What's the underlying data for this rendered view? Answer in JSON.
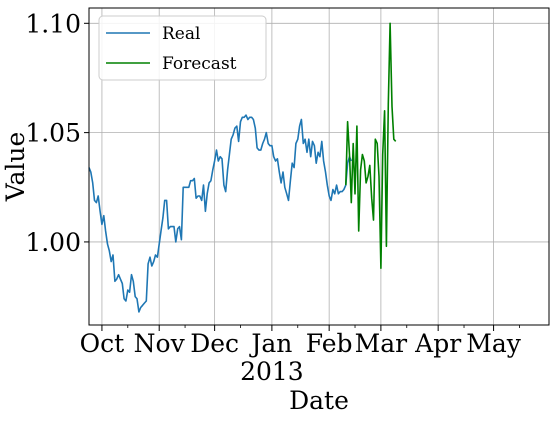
{
  "chart_data": {
    "type": "line",
    "xlabel": "Date",
    "ylabel": "Value",
    "x_tick_labels": [
      "Oct",
      "Nov",
      "Dec",
      "Jan",
      "Feb",
      "Mar",
      "Apr",
      "May"
    ],
    "x_tick_dates": [
      "2012-10-01",
      "2012-11-01",
      "2012-12-01",
      "2013-01-01",
      "2013-02-01",
      "2013-03-01",
      "2013-04-01",
      "2013-05-01"
    ],
    "x_year_label": "2013",
    "xlim": [
      "2012-09-24",
      "2013-05-31"
    ],
    "y_ticks": [
      1.0,
      1.05,
      1.1
    ],
    "y_tick_labels": [
      "1.00",
      "1.05",
      "1.10"
    ],
    "ylim": [
      0.962,
      1.107
    ],
    "grid": true,
    "legend_position": "upper-left",
    "series": [
      {
        "name": "Real",
        "color": "#1f77b4",
        "points": [
          [
            "2012-09-24",
            1.034
          ],
          [
            "2012-09-25",
            1.032
          ],
          [
            "2012-09-26",
            1.027
          ],
          [
            "2012-09-27",
            1.019
          ],
          [
            "2012-09-28",
            1.018
          ],
          [
            "2012-09-29",
            1.021
          ],
          [
            "2012-09-30",
            1.014
          ],
          [
            "2012-10-01",
            1.008
          ],
          [
            "2012-10-02",
            1.012
          ],
          [
            "2012-10-03",
            1.005
          ],
          [
            "2012-10-04",
            0.999
          ],
          [
            "2012-10-05",
            0.996
          ],
          [
            "2012-10-06",
            0.991
          ],
          [
            "2012-10-07",
            0.994
          ],
          [
            "2012-10-08",
            0.982
          ],
          [
            "2012-10-09",
            0.983
          ],
          [
            "2012-10-10",
            0.985
          ],
          [
            "2012-10-11",
            0.983
          ],
          [
            "2012-10-12",
            0.981
          ],
          [
            "2012-10-13",
            0.974
          ],
          [
            "2012-10-14",
            0.973
          ],
          [
            "2012-10-15",
            0.978
          ],
          [
            "2012-10-16",
            0.977
          ],
          [
            "2012-10-17",
            0.985
          ],
          [
            "2012-10-18",
            0.982
          ],
          [
            "2012-10-19",
            0.975
          ],
          [
            "2012-10-20",
            0.974
          ],
          [
            "2012-10-21",
            0.968
          ],
          [
            "2012-10-22",
            0.97
          ],
          [
            "2012-10-23",
            0.971
          ],
          [
            "2012-10-24",
            0.972
          ],
          [
            "2012-10-25",
            0.973
          ],
          [
            "2012-10-26",
            0.99
          ],
          [
            "2012-10-27",
            0.993
          ],
          [
            "2012-10-28",
            0.989
          ],
          [
            "2012-10-29",
            0.991
          ],
          [
            "2012-10-30",
            0.994
          ],
          [
            "2012-10-31",
            0.993
          ],
          [
            "2012-11-01",
            0.999
          ],
          [
            "2012-11-02",
            1.005
          ],
          [
            "2012-11-03",
            1.011
          ],
          [
            "2012-11-04",
            1.019
          ],
          [
            "2012-11-05",
            1.019
          ],
          [
            "2012-11-06",
            1.006
          ],
          [
            "2012-11-07",
            1.007
          ],
          [
            "2012-11-08",
            1.007
          ],
          [
            "2012-11-09",
            1.007
          ],
          [
            "2012-11-10",
            1.0
          ],
          [
            "2012-11-11",
            1.006
          ],
          [
            "2012-11-12",
            1.007
          ],
          [
            "2012-11-13",
            1.001
          ],
          [
            "2012-11-14",
            1.025
          ],
          [
            "2012-11-15",
            1.025
          ],
          [
            "2012-11-16",
            1.025
          ],
          [
            "2012-11-17",
            1.025
          ],
          [
            "2012-11-18",
            1.028
          ],
          [
            "2012-11-19",
            1.028
          ],
          [
            "2012-11-20",
            1.029
          ],
          [
            "2012-11-21",
            1.02
          ],
          [
            "2012-11-22",
            1.021
          ],
          [
            "2012-11-23",
            1.021
          ],
          [
            "2012-11-24",
            1.019
          ],
          [
            "2012-11-25",
            1.026
          ],
          [
            "2012-11-26",
            1.014
          ],
          [
            "2012-11-27",
            1.022
          ],
          [
            "2012-11-28",
            1.027
          ],
          [
            "2012-11-29",
            1.028
          ],
          [
            "2012-11-30",
            1.033
          ],
          [
            "2012-12-01",
            1.037
          ],
          [
            "2012-12-02",
            1.042
          ],
          [
            "2012-12-03",
            1.037
          ],
          [
            "2012-12-04",
            1.039
          ],
          [
            "2012-12-05",
            1.038
          ],
          [
            "2012-12-06",
            1.026
          ],
          [
            "2012-12-07",
            1.023
          ],
          [
            "2012-12-08",
            1.033
          ],
          [
            "2012-12-09",
            1.04
          ],
          [
            "2012-12-10",
            1.047
          ],
          [
            "2012-12-11",
            1.049
          ],
          [
            "2012-12-12",
            1.052
          ],
          [
            "2012-12-13",
            1.053
          ],
          [
            "2012-12-14",
            1.046
          ],
          [
            "2012-12-15",
            1.055
          ],
          [
            "2012-12-16",
            1.057
          ],
          [
            "2012-12-17",
            1.057
          ],
          [
            "2012-12-18",
            1.058
          ],
          [
            "2012-12-19",
            1.056
          ],
          [
            "2012-12-20",
            1.057
          ],
          [
            "2012-12-21",
            1.057
          ],
          [
            "2012-12-22",
            1.056
          ],
          [
            "2012-12-23",
            1.052
          ],
          [
            "2012-12-24",
            1.043
          ],
          [
            "2012-12-25",
            1.042
          ],
          [
            "2012-12-26",
            1.042
          ],
          [
            "2012-12-27",
            1.045
          ],
          [
            "2012-12-28",
            1.047
          ],
          [
            "2012-12-29",
            1.05
          ],
          [
            "2012-12-30",
            1.045
          ],
          [
            "2012-12-31",
            1.044
          ],
          [
            "2013-01-01",
            1.044
          ],
          [
            "2013-01-02",
            1.039
          ],
          [
            "2013-01-03",
            1.037
          ],
          [
            "2013-01-04",
            1.038
          ],
          [
            "2013-01-05",
            1.032
          ],
          [
            "2013-01-06",
            1.027
          ],
          [
            "2013-01-07",
            1.032
          ],
          [
            "2013-01-08",
            1.025
          ],
          [
            "2013-01-09",
            1.022
          ],
          [
            "2013-01-10",
            1.019
          ],
          [
            "2013-01-11",
            1.028
          ],
          [
            "2013-01-12",
            1.036
          ],
          [
            "2013-01-13",
            1.034
          ],
          [
            "2013-01-14",
            1.045
          ],
          [
            "2013-01-15",
            1.047
          ],
          [
            "2013-01-16",
            1.053
          ],
          [
            "2013-01-17",
            1.056
          ],
          [
            "2013-01-18",
            1.045
          ],
          [
            "2013-01-19",
            1.047
          ],
          [
            "2013-01-20",
            1.041
          ],
          [
            "2013-01-21",
            1.047
          ],
          [
            "2013-01-22",
            1.039
          ],
          [
            "2013-01-23",
            1.046
          ],
          [
            "2013-01-24",
            1.044
          ],
          [
            "2013-01-25",
            1.036
          ],
          [
            "2013-01-26",
            1.041
          ],
          [
            "2013-01-27",
            1.039
          ],
          [
            "2013-01-28",
            1.046
          ],
          [
            "2013-01-29",
            1.037
          ],
          [
            "2013-01-30",
            1.032
          ],
          [
            "2013-01-31",
            1.026
          ],
          [
            "2013-02-01",
            1.021
          ],
          [
            "2013-02-02",
            1.019
          ],
          [
            "2013-02-03",
            1.024
          ],
          [
            "2013-02-04",
            1.022
          ],
          [
            "2013-02-05",
            1.026
          ],
          [
            "2013-02-06",
            1.022
          ],
          [
            "2013-02-07",
            1.023
          ],
          [
            "2013-02-08",
            1.023
          ],
          [
            "2013-02-09",
            1.024
          ],
          [
            "2013-02-10",
            1.026
          ],
          [
            "2013-02-11",
            1.036
          ],
          [
            "2013-02-12",
            1.039
          ],
          [
            "2013-02-13",
            1.037
          ]
        ]
      },
      {
        "name": "Forecast",
        "color": "#008000",
        "points": [
          [
            "2013-02-10",
            1.026
          ],
          [
            "2013-02-11",
            1.055
          ],
          [
            "2013-02-12",
            1.04
          ],
          [
            "2013-02-13",
            1.018
          ],
          [
            "2013-02-14",
            1.045
          ],
          [
            "2013-02-15",
            1.022
          ],
          [
            "2013-02-16",
            1.053
          ],
          [
            "2013-02-17",
            1.005
          ],
          [
            "2013-02-18",
            1.033
          ],
          [
            "2013-02-19",
            1.04
          ],
          [
            "2013-02-20",
            1.037
          ],
          [
            "2013-02-21",
            1.027
          ],
          [
            "2013-02-22",
            1.03
          ],
          [
            "2013-02-23",
            1.035
          ],
          [
            "2013-02-24",
            1.02
          ],
          [
            "2013-02-25",
            1.01
          ],
          [
            "2013-02-26",
            1.047
          ],
          [
            "2013-02-27",
            1.045
          ],
          [
            "2013-02-28",
            1.03
          ],
          [
            "2013-03-01",
            0.988
          ],
          [
            "2013-03-02",
            1.04
          ],
          [
            "2013-03-03",
            1.06
          ],
          [
            "2013-03-04",
            0.998
          ],
          [
            "2013-03-05",
            1.063
          ],
          [
            "2013-03-06",
            1.1
          ],
          [
            "2013-03-07",
            1.062
          ],
          [
            "2013-03-08",
            1.047
          ],
          [
            "2013-03-09",
            1.046
          ]
        ]
      }
    ]
  }
}
